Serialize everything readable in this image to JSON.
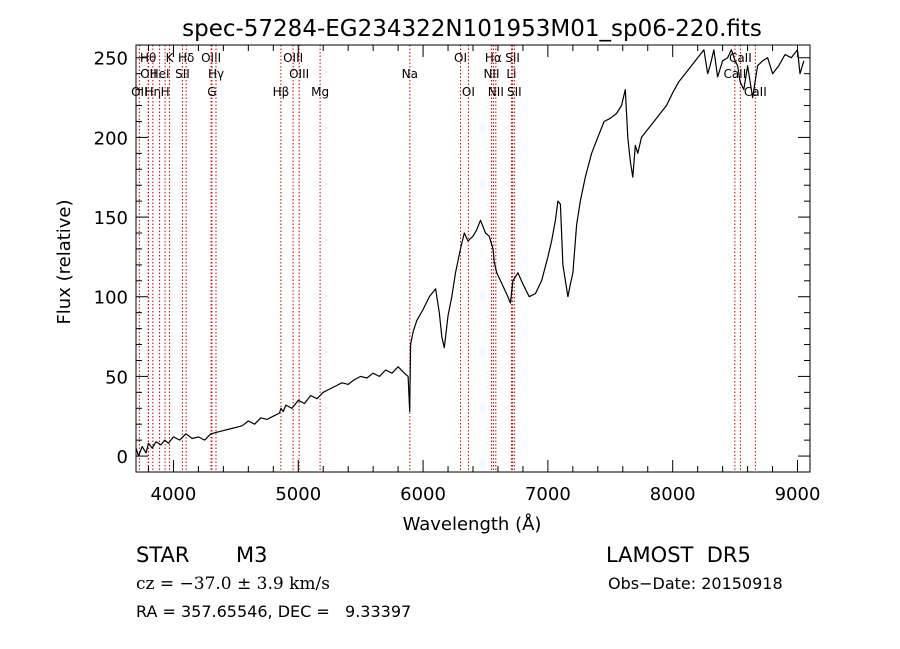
{
  "chart_data": {
    "type": "line",
    "title": "spec-57284-EG234322N101953M01_sp06-220.fits",
    "xlabel": "Wavelength (Å)",
    "ylabel": "Flux (relative)",
    "xlim": [
      3700,
      9100
    ],
    "ylim": [
      -10,
      258
    ],
    "x_ticks": [
      4000,
      5000,
      6000,
      7000,
      8000,
      9000
    ],
    "y_ticks": [
      0,
      50,
      100,
      150,
      200,
      250
    ],
    "grid": false,
    "line_color": "#000000",
    "marker_color": "#cc0000",
    "series": [
      {
        "name": "",
        "x": [
          3700,
          3720,
          3750,
          3780,
          3800,
          3830,
          3860,
          3900,
          3930,
          3960,
          4000,
          4050,
          4100,
          4150,
          4200,
          4250,
          4300,
          4350,
          4400,
          4450,
          4500,
          4550,
          4600,
          4650,
          4700,
          4750,
          4800,
          4850,
          4861,
          4880,
          4900,
          4950,
          5000,
          5050,
          5100,
          5150,
          5200,
          5250,
          5300,
          5350,
          5400,
          5450,
          5500,
          5550,
          5600,
          5650,
          5700,
          5750,
          5800,
          5850,
          5880,
          5893,
          5900,
          5920,
          5950,
          6000,
          6050,
          6080,
          6100,
          6130,
          6150,
          6170,
          6200,
          6230,
          6260,
          6300,
          6330,
          6360,
          6400,
          6430,
          6460,
          6500,
          6530,
          6560,
          6570,
          6590,
          6620,
          6650,
          6680,
          6700,
          6720,
          6760,
          6800,
          6850,
          6900,
          6950,
          7000,
          7030,
          7060,
          7080,
          7100,
          7120,
          7140,
          7160,
          7180,
          7200,
          7230,
          7260,
          7300,
          7350,
          7400,
          7450,
          7500,
          7550,
          7590,
          7620,
          7640,
          7660,
          7680,
          7700,
          7720,
          7750,
          7800,
          7850,
          7900,
          7950,
          8000,
          8050,
          8100,
          8150,
          8200,
          8250,
          8280,
          8300,
          8330,
          8360,
          8400,
          8440,
          8470,
          8500,
          8520,
          8540,
          8570,
          8600,
          8640,
          8680,
          8720,
          8760,
          8800,
          8850,
          8900,
          8950,
          9000,
          9020,
          9050
        ],
        "y": [
          5,
          0,
          6,
          2,
          8,
          5,
          9,
          7,
          10,
          8,
          12,
          10,
          14,
          11,
          12,
          10,
          14,
          15,
          16,
          17,
          18,
          19,
          22,
          20,
          24,
          23,
          25,
          27,
          30,
          28,
          32,
          30,
          35,
          33,
          38,
          36,
          40,
          42,
          44,
          46,
          45,
          48,
          50,
          49,
          52,
          50,
          54,
          52,
          56,
          52,
          50,
          28,
          70,
          78,
          85,
          92,
          100,
          103,
          105,
          90,
          75,
          68,
          88,
          100,
          115,
          130,
          140,
          135,
          138,
          142,
          148,
          140,
          138,
          130,
          122,
          115,
          110,
          105,
          100,
          96,
          110,
          115,
          108,
          100,
          102,
          110,
          125,
          135,
          148,
          160,
          158,
          120,
          110,
          100,
          108,
          115,
          145,
          160,
          175,
          190,
          200,
          210,
          212,
          215,
          220,
          230,
          200,
          185,
          175,
          195,
          190,
          200,
          205,
          210,
          215,
          220,
          228,
          235,
          240,
          245,
          250,
          255,
          240,
          245,
          255,
          238,
          248,
          250,
          255,
          248,
          245,
          235,
          230,
          245,
          225,
          245,
          248,
          250,
          240,
          245,
          252,
          250,
          255,
          240,
          248
        ]
      }
    ],
    "line_markers": [
      {
        "label": "OII",
        "x": 3727,
        "row": 3
      },
      {
        "label": "Hθ",
        "x": 3798,
        "row": 1
      },
      {
        "label": "OII",
        "x": 3800,
        "row": 2
      },
      {
        "label": "Hη",
        "x": 3835,
        "row": 3
      },
      {
        "label": "HeI",
        "x": 3889,
        "row": 2
      },
      {
        "label": "H",
        "x": 3933,
        "row": 3
      },
      {
        "label": "K",
        "x": 3969,
        "row": 1
      },
      {
        "label": "SII",
        "x": 4072,
        "row": 2
      },
      {
        "label": "Hδ",
        "x": 4102,
        "row": 1
      },
      {
        "label": "OIII",
        "x": 4302,
        "row": 1
      },
      {
        "label": "Hγ",
        "x": 4341,
        "row": 2
      },
      {
        "label": "G",
        "x": 4308,
        "row": 3
      },
      {
        "label": "Hβ",
        "x": 4861,
        "row": 3
      },
      {
        "label": "OIII",
        "x": 4959,
        "row": 1
      },
      {
        "label": "OIII",
        "x": 5007,
        "row": 2
      },
      {
        "label": "Mg",
        "x": 5175,
        "row": 3
      },
      {
        "label": "Na",
        "x": 5894,
        "row": 2
      },
      {
        "label": "OI",
        "x": 6300,
        "row": 1
      },
      {
        "label": "OI",
        "x": 6363,
        "row": 3
      },
      {
        "label": "Hα",
        "x": 6563,
        "row": 1
      },
      {
        "label": "NII",
        "x": 6548,
        "row": 2
      },
      {
        "label": "NII",
        "x": 6583,
        "row": 3
      },
      {
        "label": "Li",
        "x": 6708,
        "row": 2
      },
      {
        "label": "SII",
        "x": 6717,
        "row": 1
      },
      {
        "label": "SII",
        "x": 6731,
        "row": 3
      },
      {
        "label": "CaII",
        "x": 8498,
        "row": 2
      },
      {
        "label": "CaII",
        "x": 8542,
        "row": 1
      },
      {
        "label": "CaII",
        "x": 8662,
        "row": 3
      }
    ]
  },
  "info": {
    "object_class": "STAR",
    "subclass": "M3",
    "survey": "LAMOST  DR5",
    "velocity": "cz = −37.0 ± 3.9 km/s",
    "obs_date": "Obs−Date: 20150918",
    "coords": "RA = 357.65546, DEC =   9.33397"
  }
}
